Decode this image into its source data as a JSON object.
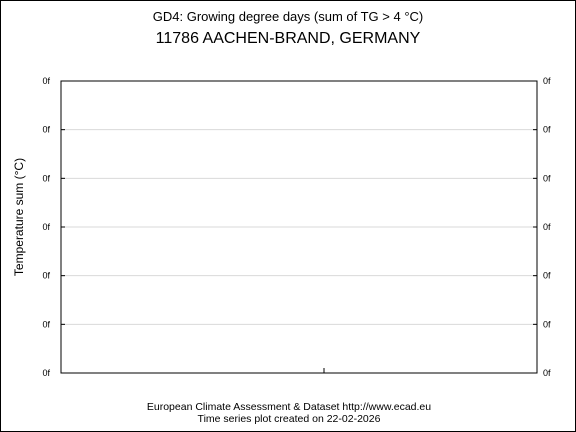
{
  "chart_data": {
    "type": "line",
    "title": "GD4: Growing degree days (sum of TG > 4 °C)",
    "subtitle": "11786 AACHEN-BRAND, GERMANY",
    "ylabel": "Temperature sum (°C)",
    "xlabel": "",
    "y_tick_labels": [
      "0f",
      "0f",
      "0f",
      "0f",
      "0f",
      "0f",
      "0f"
    ],
    "series": [],
    "grid": true
  },
  "footer": {
    "source": "European Climate Assessment & Dataset  http://www.ecad.eu",
    "created": "Time series plot created on 22-02-2026"
  },
  "colors": {
    "gridline": "#d9d9d9",
    "axis": "#000000"
  }
}
